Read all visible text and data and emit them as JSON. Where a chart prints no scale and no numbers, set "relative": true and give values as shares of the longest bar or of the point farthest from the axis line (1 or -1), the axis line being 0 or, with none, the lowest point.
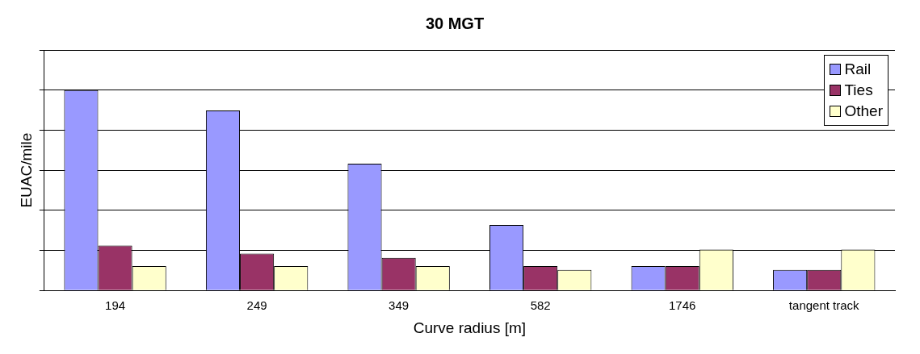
{
  "chart_data": {
    "type": "bar",
    "title": "30 MGT",
    "xlabel": "Curve radius [m]",
    "ylabel": "EUAC/mile",
    "relative": true,
    "grid": "y",
    "legend": "top right",
    "categories": [
      "194",
      "249",
      "349",
      "582",
      "1746",
      "tangent track"
    ],
    "series": [
      {
        "name": "Rail",
        "color": "#9999ff",
        "values": [
          1,
          0.898,
          0.633,
          0.327,
          0.122,
          0.102
        ]
      },
      {
        "name": "Ties",
        "color": "#993366",
        "values": [
          0.224,
          0.184,
          0.163,
          0.122,
          0.122,
          0.102
        ]
      },
      {
        "name": "Other",
        "color": "#ffffcc",
        "values": [
          0.122,
          0.122,
          0.122,
          0.102,
          0.204,
          0.204
        ]
      }
    ]
  }
}
